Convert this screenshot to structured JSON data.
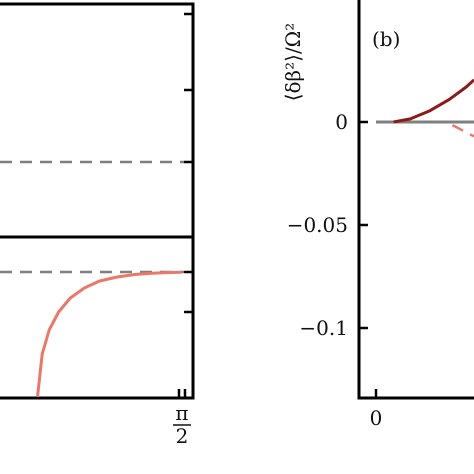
{
  "chart_data": [
    {
      "panel": "a-upper",
      "type": "line",
      "series": [
        {
          "values": [
            [
              0.0,
              0.0
            ],
            [
              1.5708,
              0.0
            ]
          ],
          "color": "#7f7f7f",
          "style": "dashed"
        }
      ]
    },
    {
      "panel": "a-lower",
      "type": "line",
      "x_tick_labels": [
        "π",
        "2"
      ],
      "series": [
        {
          "values": [
            [
              0.0,
              0.0
            ],
            [
              1.5708,
              0.0
            ]
          ],
          "color": "#7f7f7f",
          "style": "dashed"
        },
        {
          "color": "#e8796a",
          "style": "solid",
          "values": [
            [
              0.32,
              -1.25
            ],
            [
              0.36,
              -0.82
            ],
            [
              0.42,
              -0.58
            ],
            [
              0.5,
              -0.4
            ],
            [
              0.6,
              -0.26
            ],
            [
              0.72,
              -0.16
            ],
            [
              0.85,
              -0.09
            ],
            [
              1.0,
              -0.05
            ],
            [
              1.15,
              -0.025
            ],
            [
              1.3,
              -0.012
            ],
            [
              1.45,
              -0.005
            ],
            [
              1.55,
              -0.003
            ]
          ]
        }
      ]
    },
    {
      "panel": "b",
      "type": "line",
      "label": "(b)",
      "ylabel": "⟨δβ²⟩/Ω²",
      "y_ticks": [
        0,
        -0.05,
        -0.1
      ],
      "y_tick_labels": [
        "0",
        "−0.05",
        "−0.1"
      ],
      "x_tick_labels": [
        "0"
      ],
      "ylim": [
        -0.13,
        0.06
      ],
      "series": [
        {
          "values": [
            [
              0.0,
              0.0
            ],
            [
              1.0,
              0.0
            ]
          ],
          "color": "#7f7f7f",
          "style": "solid"
        },
        {
          "values": [
            [
              0.18,
              0.0
            ],
            [
              0.35,
              0.0015
            ],
            [
              0.55,
              0.0055
            ],
            [
              0.75,
              0.011
            ],
            [
              0.92,
              0.017
            ],
            [
              1.0,
              0.0205
            ]
          ],
          "color": "#8b1a1a",
          "style": "solid"
        },
        {
          "values": [
            [
              0.78,
              -0.0015
            ],
            [
              0.88,
              -0.004
            ],
            [
              1.0,
              -0.007
            ]
          ],
          "color": "#e8796a",
          "style": "dashed"
        }
      ]
    }
  ]
}
